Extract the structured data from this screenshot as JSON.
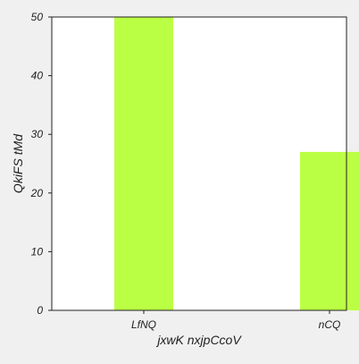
{
  "chart_data": {
    "type": "bar",
    "title": "",
    "xlabel": "jxwK nxjpCcoV",
    "ylabel": "QkiFS tMd",
    "categories": [
      "LfNQ",
      "nCQ"
    ],
    "values": [
      50,
      27
    ],
    "ylim": [
      0,
      50
    ],
    "yticks": [
      0,
      10,
      20,
      30,
      40,
      50
    ],
    "grid": false,
    "legend": "none",
    "colors": {
      "bar": "#bbff44",
      "plot_background": "#ffffff",
      "figure_background": "#f0f0f0",
      "axis": "#222222"
    }
  }
}
